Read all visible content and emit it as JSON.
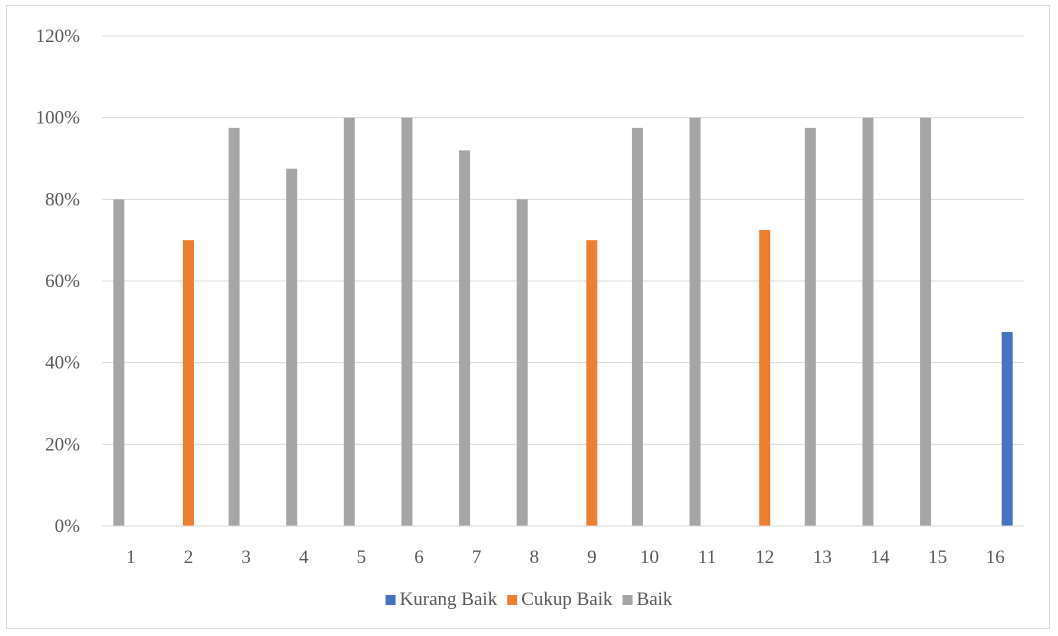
{
  "chart_data": {
    "type": "bar",
    "title": "",
    "xlabel": "",
    "ylabel": "",
    "categories": [
      "1",
      "2",
      "3",
      "4",
      "5",
      "6",
      "7",
      "8",
      "9",
      "10",
      "11",
      "12",
      "13",
      "14",
      "15",
      "16"
    ],
    "ylim": [
      0,
      1.2
    ],
    "yticks": [
      0,
      0.2,
      0.4,
      0.6,
      0.8,
      1.0,
      1.2
    ],
    "ytick_labels": [
      "0%",
      "20%",
      "40%",
      "60%",
      "80%",
      "100%",
      "120%"
    ],
    "grid": true,
    "legend_position": "bottom",
    "series": [
      {
        "name": "Kurang Baik",
        "color": "#4472c4",
        "values": [
          null,
          null,
          null,
          null,
          null,
          null,
          null,
          null,
          null,
          null,
          null,
          null,
          null,
          null,
          null,
          0.475
        ]
      },
      {
        "name": "Cukup Baik",
        "color": "#ed7d31",
        "values": [
          null,
          0.7,
          null,
          null,
          null,
          null,
          null,
          null,
          0.7,
          null,
          null,
          0.725,
          null,
          null,
          null,
          null
        ]
      },
      {
        "name": "Baik",
        "color": "#a5a5a5",
        "values": [
          0.8,
          null,
          0.975,
          0.875,
          1.0,
          1.0,
          0.92,
          0.8,
          null,
          0.975,
          1.0,
          null,
          0.975,
          1.0,
          1.0,
          null
        ]
      }
    ]
  }
}
